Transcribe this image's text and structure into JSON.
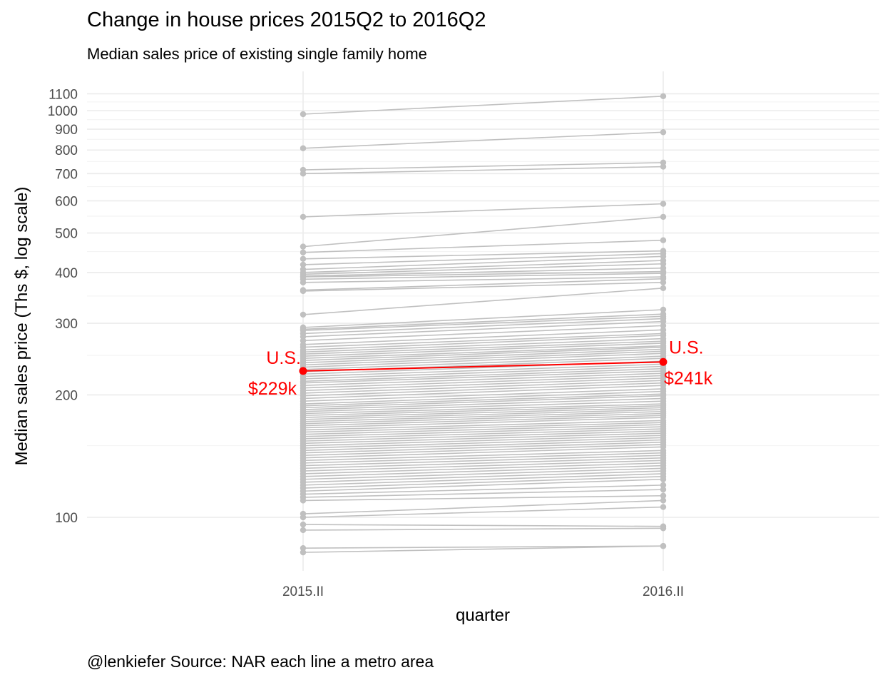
{
  "chart_data": {
    "type": "line",
    "title": "Change in house prices 2015Q2 to 2016Q2",
    "subtitle": "Median sales price of existing single family home",
    "caption": "@lenkiefer Source: NAR each line a metro area",
    "xlabel": "quarter",
    "ylabel": "Median sales price (Ths $, log scale)",
    "categories": [
      "2015.II",
      "2016.II"
    ],
    "y_scale": "log",
    "ylim": [
      80,
      1150
    ],
    "y_ticks": [
      100,
      200,
      300,
      400,
      500,
      600,
      700,
      800,
      900,
      1000,
      1100
    ],
    "grid": true,
    "highlight": {
      "name": "U.S.",
      "values": [
        229,
        241
      ],
      "labels": [
        "$229k",
        "$241k"
      ],
      "color": "#ff0000"
    },
    "series_color": "#c0c0c0",
    "metro_pairs": [
      [
        980,
        1085
      ],
      [
        808,
        885
      ],
      [
        715,
        745
      ],
      [
        700,
        728
      ],
      [
        548,
        590
      ],
      [
        463,
        548
      ],
      [
        448,
        480
      ],
      [
        432,
        452
      ],
      [
        418,
        445
      ],
      [
        407,
        438
      ],
      [
        400,
        428
      ],
      [
        396,
        420
      ],
      [
        392,
        410
      ],
      [
        390,
        402
      ],
      [
        385,
        398
      ],
      [
        378,
        390
      ],
      [
        362,
        386
      ],
      [
        360,
        378
      ],
      [
        315,
        366
      ],
      [
        293,
        324
      ],
      [
        290,
        316
      ],
      [
        288,
        312
      ],
      [
        283,
        308
      ],
      [
        278,
        303
      ],
      [
        272,
        296
      ],
      [
        266,
        289
      ],
      [
        262,
        283
      ],
      [
        258,
        280
      ],
      [
        255,
        275
      ],
      [
        252,
        271
      ],
      [
        249,
        268
      ],
      [
        246,
        264
      ],
      [
        243,
        262
      ],
      [
        240,
        259
      ],
      [
        237,
        256
      ],
      [
        234,
        253
      ],
      [
        231,
        249
      ],
      [
        228,
        246
      ],
      [
        225,
        242
      ],
      [
        222,
        238
      ],
      [
        219,
        235
      ],
      [
        216,
        232
      ],
      [
        214,
        229
      ],
      [
        211,
        226
      ],
      [
        208,
        223
      ],
      [
        205,
        220
      ],
      [
        202,
        217
      ],
      [
        199,
        214
      ],
      [
        196,
        211
      ],
      [
        193,
        207
      ],
      [
        190,
        204
      ],
      [
        188,
        201
      ],
      [
        186,
        199
      ],
      [
        184,
        196
      ],
      [
        182,
        193
      ],
      [
        180,
        190
      ],
      [
        178,
        188
      ],
      [
        176,
        186
      ],
      [
        174,
        184
      ],
      [
        172,
        182
      ],
      [
        170,
        180
      ],
      [
        168,
        178
      ],
      [
        166,
        176
      ],
      [
        164,
        173
      ],
      [
        162,
        171
      ],
      [
        160,
        169
      ],
      [
        158,
        167
      ],
      [
        156,
        165
      ],
      [
        154,
        163
      ],
      [
        152,
        161
      ],
      [
        150,
        159
      ],
      [
        148,
        157
      ],
      [
        146,
        155
      ],
      [
        144,
        153
      ],
      [
        142,
        151
      ],
      [
        140,
        149
      ],
      [
        138,
        146
      ],
      [
        136,
        144
      ],
      [
        134,
        142
      ],
      [
        132,
        140
      ],
      [
        130,
        138
      ],
      [
        128,
        136
      ],
      [
        126,
        134
      ],
      [
        124,
        132
      ],
      [
        122,
        130
      ],
      [
        120,
        128
      ],
      [
        118,
        126
      ],
      [
        116,
        124
      ],
      [
        114,
        120
      ],
      [
        112,
        117
      ],
      [
        110,
        113
      ],
      [
        102,
        110
      ],
      [
        100,
        106
      ],
      [
        96,
        95
      ],
      [
        93,
        94
      ],
      [
        84,
        85
      ],
      [
        82,
        85
      ]
    ]
  }
}
